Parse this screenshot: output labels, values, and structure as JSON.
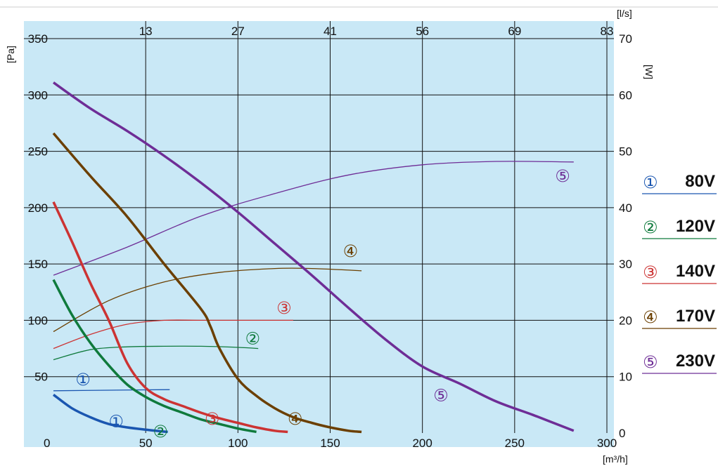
{
  "chart_data": {
    "type": "line",
    "title": "",
    "xlabel": "[m³/h]",
    "ylabel_left": "[Pa]",
    "ylabel_right": "[W]",
    "x2label": "[l/s]",
    "xlim": [
      0,
      300
    ],
    "ylim_left": [
      0,
      350
    ],
    "ylim_right": [
      0,
      70
    ],
    "x_ticks": [
      "0",
      "50",
      "100",
      "150",
      "200",
      "250",
      "300"
    ],
    "x2_ticks": [
      "13",
      "27",
      "41",
      "56",
      "69",
      "83"
    ],
    "y_left_ticks": [
      "50",
      "100",
      "150",
      "200",
      "250",
      "300",
      "350"
    ],
    "y_right_ticks": [
      "0",
      "10",
      "20",
      "30",
      "40",
      "50",
      "60",
      "70"
    ],
    "grid": true,
    "background": "#c9e8f6",
    "legend_position": "right",
    "series": [
      {
        "name": "80V",
        "marker": "①",
        "color": "#1a56b0",
        "pressure": {
          "x": [
            0,
            10,
            20,
            30,
            40,
            50,
            62
          ],
          "y": [
            34,
            22,
            14,
            8,
            5,
            3,
            1
          ]
        },
        "power": {
          "x": [
            0,
            30,
            63
          ],
          "y": [
            7.5,
            7.6,
            7.7
          ]
        }
      },
      {
        "name": "120V",
        "marker": "②",
        "color": "#0f7a3c",
        "pressure": {
          "x": [
            0,
            10,
            20,
            30,
            40,
            50,
            60,
            70,
            80,
            90,
            100,
            110
          ],
          "y": [
            136,
            105,
            80,
            60,
            43,
            32,
            24,
            18,
            12,
            8,
            4,
            1
          ]
        },
        "power": {
          "x": [
            0,
            20,
            40,
            60,
            80,
            100,
            111
          ],
          "y": [
            13,
            14.8,
            15.3,
            15.4,
            15.4,
            15.2,
            15
          ]
        }
      },
      {
        "name": "140V",
        "marker": "③",
        "color": "#cc3333",
        "pressure": {
          "x": [
            0,
            10,
            20,
            30,
            40,
            50,
            60,
            70,
            80,
            90,
            100,
            110,
            120,
            127
          ],
          "y": [
            205,
            170,
            133,
            100,
            62,
            40,
            30,
            24,
            18,
            13,
            9,
            5,
            2,
            1
          ]
        },
        "power": {
          "x": [
            0,
            20,
            40,
            60,
            80,
            100,
            130
          ],
          "y": [
            15,
            17.5,
            19.3,
            20,
            20,
            20,
            20
          ]
        }
      },
      {
        "name": "170V",
        "marker": "④",
        "color": "#6b3f00",
        "pressure": {
          "x": [
            0,
            20,
            40,
            60,
            80,
            85,
            90,
            100,
            110,
            120,
            130,
            140,
            150,
            160,
            167
          ],
          "y": [
            266,
            228,
            192,
            150,
            110,
            95,
            75,
            48,
            33,
            22,
            14,
            9,
            5,
            2,
            1
          ]
        },
        "power": {
          "x": [
            0,
            30,
            60,
            90,
            120,
            140,
            167
          ],
          "y": [
            18,
            23.5,
            26.8,
            28.5,
            29.2,
            29.2,
            28.8
          ]
        }
      },
      {
        "name": "230V",
        "marker": "⑤",
        "color": "#6e2d96",
        "pressure": {
          "x": [
            0,
            20,
            40,
            60,
            80,
            100,
            120,
            140,
            160,
            180,
            200,
            220,
            240,
            260,
            282
          ],
          "y": [
            311,
            288,
            268,
            246,
            222,
            196,
            168,
            140,
            111,
            83,
            59,
            44,
            28,
            16,
            2
          ]
        },
        "power": {
          "x": [
            0,
            40,
            80,
            120,
            160,
            200,
            240,
            282
          ],
          "y": [
            28,
            33,
            38.5,
            42.5,
            45.8,
            47.6,
            48.2,
            48.1
          ]
        }
      }
    ]
  }
}
